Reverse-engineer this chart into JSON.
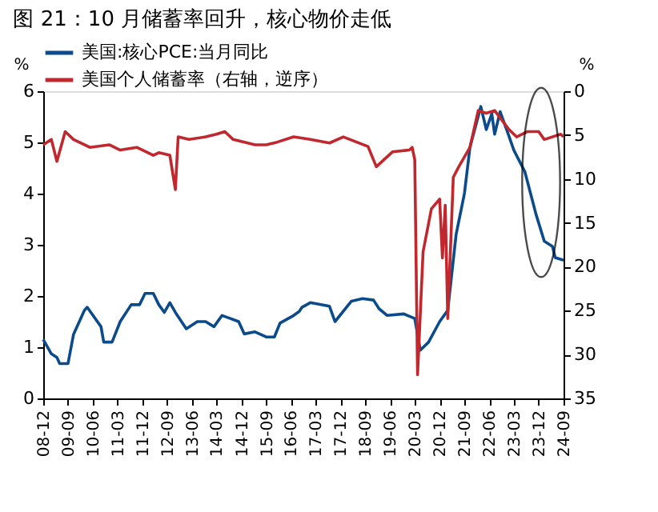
{
  "chart_data": {
    "type": "line",
    "title": "图 21：10 月储蓄率回升，核心物价走低",
    "ylabel": "%",
    "y2label": "%",
    "xlim": [
      "2008-12",
      "2024-09"
    ],
    "xticks": [
      {
        "value": "2008-12",
        "label": "08-12"
      },
      {
        "value": "2009-09",
        "label": "09-09"
      },
      {
        "value": "2010-06",
        "label": "10-06"
      },
      {
        "value": "2011-03",
        "label": "11-03"
      },
      {
        "value": "2011-12",
        "label": "11-12"
      },
      {
        "value": "2012-09",
        "label": "12-09"
      },
      {
        "value": "2013-06",
        "label": "13-06"
      },
      {
        "value": "2014-03",
        "label": "14-03"
      },
      {
        "value": "2014-12",
        "label": "14-12"
      },
      {
        "value": "2015-09",
        "label": "15-09"
      },
      {
        "value": "2016-06",
        "label": "16-06"
      },
      {
        "value": "2017-03",
        "label": "17-03"
      },
      {
        "value": "2017-12",
        "label": "17-12"
      },
      {
        "value": "2018-09",
        "label": "18-09"
      },
      {
        "value": "2019-06",
        "label": "19-06"
      },
      {
        "value": "2020-03",
        "label": "20-03"
      },
      {
        "value": "2020-12",
        "label": "20-12"
      },
      {
        "value": "2021-09",
        "label": "21-09"
      },
      {
        "value": "2022-06",
        "label": "22-06"
      },
      {
        "value": "2023-03",
        "label": "23-03"
      },
      {
        "value": "2023-12",
        "label": "23-12"
      },
      {
        "value": "2024-09",
        "label": "24-09"
      }
    ],
    "ylim": [
      0,
      6
    ],
    "yticks": [
      0,
      1,
      2,
      3,
      4,
      5,
      6
    ],
    "y2lim": [
      35,
      0
    ],
    "y2ticks": [
      0,
      5,
      10,
      15,
      20,
      25,
      30,
      35
    ],
    "grid": false,
    "legend": "top",
    "series": [
      {
        "name": "美国:核心PCE:当月同比",
        "color": "#0b4a8b",
        "x": [
          "2008-12",
          "2009-03",
          "2009-05",
          "2009-06",
          "2009-09",
          "2009-11",
          "2010-03",
          "2010-04",
          "2010-09",
          "2010-10",
          "2011-01",
          "2011-04",
          "2011-08",
          "2011-11",
          "2012-01",
          "2012-04",
          "2012-06",
          "2012-08",
          "2012-10",
          "2012-12",
          "2013-04",
          "2013-08",
          "2013-11",
          "2014-02",
          "2014-05",
          "2014-08",
          "2014-11",
          "2015-01",
          "2015-05",
          "2015-09",
          "2015-12",
          "2016-02",
          "2016-07",
          "2016-09",
          "2016-10",
          "2017-01",
          "2017-08",
          "2017-10",
          "2018-04",
          "2018-08",
          "2018-12",
          "2019-02",
          "2019-05",
          "2019-11",
          "2020-03",
          "2020-05",
          "2020-08",
          "2020-12",
          "2021-03",
          "2021-06",
          "2021-09",
          "2021-11",
          "2022-03",
          "2022-05",
          "2022-07",
          "2022-08",
          "2022-10",
          "2023-01",
          "2023-03",
          "2023-07",
          "2023-11",
          "2024-02",
          "2024-05",
          "2024-06",
          "2024-09"
        ],
        "values": [
          1.15,
          0.87,
          0.8,
          0.68,
          0.68,
          1.25,
          1.72,
          1.78,
          1.4,
          1.1,
          1.1,
          1.5,
          1.83,
          1.83,
          2.05,
          2.05,
          1.83,
          1.68,
          1.87,
          1.68,
          1.36,
          1.5,
          1.5,
          1.4,
          1.62,
          1.56,
          1.5,
          1.26,
          1.3,
          1.2,
          1.2,
          1.47,
          1.62,
          1.7,
          1.78,
          1.87,
          1.8,
          1.5,
          1.9,
          1.95,
          1.92,
          1.75,
          1.62,
          1.65,
          1.56,
          0.94,
          1.1,
          1.5,
          1.72,
          3.2,
          4.0,
          4.9,
          5.7,
          5.25,
          5.56,
          5.16,
          5.6,
          5.15,
          4.85,
          4.43,
          3.6,
          3.07,
          2.97,
          2.75,
          2.7
        ]
      },
      {
        "name": "美国个人储蓄率（右轴，逆序）",
        "color": "#c0282e",
        "axis": "y2",
        "x": [
          "2008-12",
          "2009-03",
          "2009-05",
          "2009-08",
          "2009-11",
          "2010-05",
          "2010-12",
          "2011-04",
          "2011-10",
          "2012-04",
          "2012-06",
          "2012-10",
          "2012-12",
          "2013-01",
          "2013-05",
          "2013-11",
          "2014-03",
          "2014-06",
          "2014-09",
          "2015-05",
          "2015-09",
          "2016-01",
          "2016-07",
          "2017-01",
          "2017-08",
          "2018-01",
          "2018-10",
          "2019-01",
          "2019-07",
          "2020-01",
          "2020-02",
          "2020-03",
          "2020-04",
          "2020-06",
          "2020-09",
          "2020-12",
          "2021-01",
          "2021-02",
          "2021-03",
          "2021-05",
          "2021-07",
          "2021-11",
          "2022-02",
          "2022-05",
          "2022-08",
          "2023-01",
          "2023-04",
          "2023-08",
          "2023-12",
          "2024-02",
          "2024-08",
          "2024-09"
        ],
        "values": [
          6.1,
          5.5,
          8.0,
          4.6,
          5.5,
          6.4,
          6.1,
          6.7,
          6.4,
          7.3,
          7.0,
          7.3,
          11.2,
          5.2,
          5.5,
          5.2,
          4.9,
          4.6,
          5.5,
          6.1,
          6.1,
          5.8,
          5.2,
          5.5,
          5.9,
          5.2,
          6.3,
          8.6,
          6.9,
          6.7,
          6.4,
          7.8,
          32.3,
          18.3,
          13.4,
          12.3,
          19.0,
          13.0,
          25.9,
          9.8,
          8.6,
          6.4,
          2.2,
          2.5,
          2.2,
          4.3,
          5.2,
          4.6,
          4.6,
          5.5,
          4.9,
          5.2
        ]
      }
    ]
  }
}
